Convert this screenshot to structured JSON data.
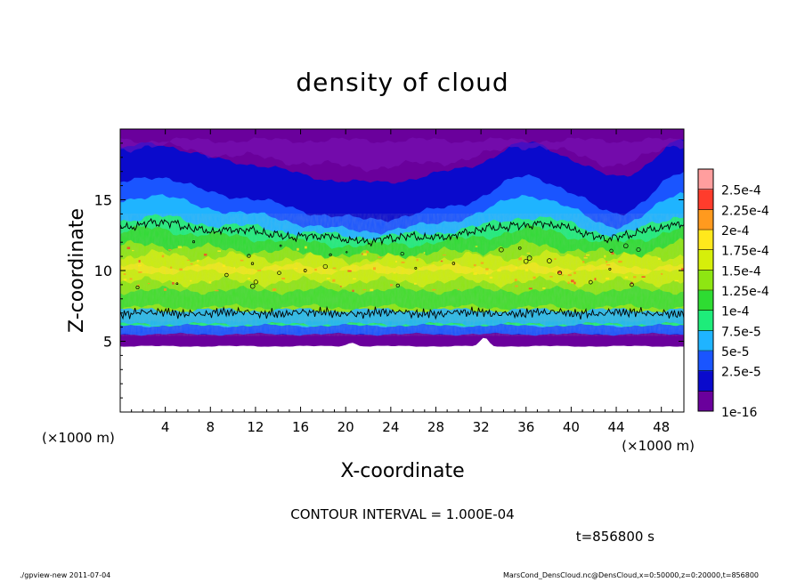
{
  "chart_data": {
    "type": "heatmap",
    "title": "density of cloud",
    "xlabel": "X-coordinate",
    "ylabel": "Z-coordinate",
    "x_unit_left": "(×1000 m)",
    "x_unit_right": "(×1000 m)",
    "xlim": [
      0,
      50
    ],
    "ylim": [
      0,
      20
    ],
    "x_ticks": [
      "4",
      "8",
      "12",
      "16",
      "20",
      "24",
      "28",
      "32",
      "36",
      "40",
      "44",
      "48"
    ],
    "y_ticks": [
      "5",
      "10",
      "15"
    ],
    "contour_interval_text": "CONTOUR INTERVAL = 1.000E-04",
    "contour_level": 0.0001,
    "time_text": "t=856800 s",
    "colorbar": {
      "labels": [
        "2.5e-4",
        "2.25e-4",
        "2e-4",
        "1.75e-4",
        "1.5e-4",
        "1.25e-4",
        "1e-4",
        "7.5e-5",
        "5e-5",
        "2.5e-5",
        "1e-16"
      ],
      "bins": [
        {
          "upper": "1e-16",
          "color": "#6a009c"
        },
        {
          "upper": "2.5e-5",
          "color": "#0a0acc"
        },
        {
          "upper": "5e-5",
          "color": "#1a55ff"
        },
        {
          "upper": "7.5e-5",
          "color": "#1fb4ff"
        },
        {
          "upper": "1e-4",
          "color": "#1eec7a"
        },
        {
          "upper": "1.25e-4",
          "color": "#2edc32"
        },
        {
          "upper": "1.5e-4",
          "color": "#8ee612"
        },
        {
          "upper": "1.75e-4",
          "color": "#d6ef0a"
        },
        {
          "upper": "2e-4",
          "color": "#ffe81c"
        },
        {
          "upper": "2.25e-4",
          "color": "#ff9a1e"
        },
        {
          "upper": "2.5e-4",
          "color": "#ff3c2c"
        },
        {
          "upper": "",
          "color": "#ff9e9e"
        }
      ]
    },
    "structure": {
      "cloud_base_z": 5,
      "contour_lower_z": 7,
      "contour_upper_z": 13,
      "domain_top_z": 20
    }
  },
  "footer": {
    "left": "./gpview-new  2011-07-04",
    "right": "MarsCond_DensCloud.nc@DensCloud,x=0:50000,z=0:20000,t=856800"
  }
}
